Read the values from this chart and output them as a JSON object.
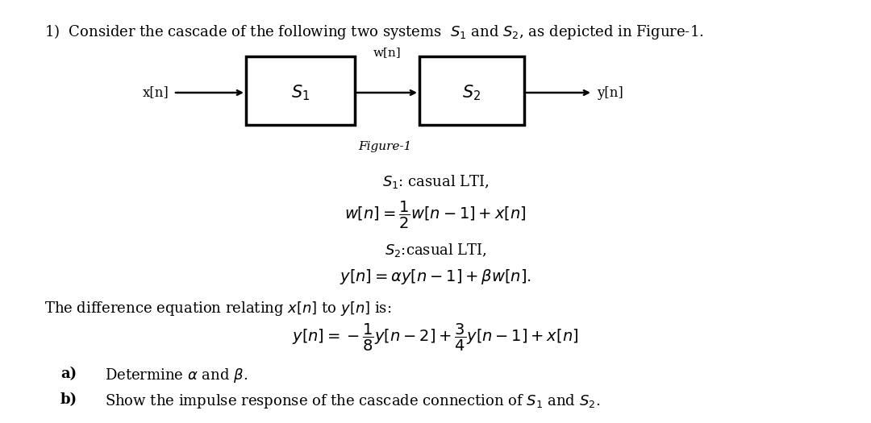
{
  "background_color": "#ffffff",
  "title_text": "1)  Consider the cascade of the following two systems  $S_1$ and $S_2$, as depicted in Figure-1.",
  "block_diagram": {
    "x1_label": "x[n]",
    "s1_label": "$S_1$",
    "w_label": "w[n]",
    "s2_label": "$S_2$",
    "y_label": "y[n]",
    "figure_label": "Figure-1"
  },
  "equations": {
    "s1_desc": "$S_1$: casual LTI,",
    "eq1": "$w[n] = \\dfrac{1}{2}w[n-1] + x[n]$",
    "s2_desc": "$S_2$:casual LTI,",
    "eq2": "$y[n] = \\alpha y[n-1] + \\beta w[n].$",
    "diff_eq_intro": "The difference equation relating $x[n]$ to $y[n]$ is:",
    "eq3": "$y[n] = -\\dfrac{1}{8}y[n-2] + \\dfrac{3}{4}y[n-1] + x[n]$"
  },
  "parts": {
    "a_label": "a)",
    "a_text": "Determine $\\alpha$ and $\\beta$.",
    "b_label": "b)",
    "b_text": "Show the impulse response of the cascade connection of $S_1$ and $S_2$."
  }
}
